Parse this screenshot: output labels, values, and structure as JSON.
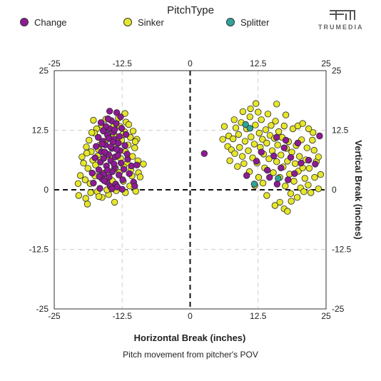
{
  "legend": {
    "title": "PitchType",
    "items": [
      {
        "label": "Change",
        "color": "#8E1A95"
      },
      {
        "label": "Sinker",
        "color": "#E6E62A"
      },
      {
        "label": "Splitter",
        "color": "#2FA39A"
      }
    ]
  },
  "logo": {
    "text": "TRUMEDIA"
  },
  "caption": "Pitch movement from pitcher's POV",
  "chart_data": {
    "type": "scatter",
    "xlabel": "Horizontal Break (inches)",
    "ylabel": "Vertical Break (inches)",
    "xlim": [
      -25,
      25
    ],
    "ylim": [
      -25,
      25
    ],
    "xticks": [
      -25,
      -12.5,
      0,
      12.5,
      25
    ],
    "yticks": [
      25,
      12.5,
      0,
      -12.5,
      -25
    ],
    "xtick_labels": [
      "-25",
      "-12.5",
      "0",
      "12.5",
      "25"
    ],
    "ytick_labels": [
      "25",
      "12.5",
      "0",
      "-12.5",
      "-25"
    ],
    "grid": true,
    "series": [
      {
        "name": "Change",
        "color": "#8E1A95",
        "points": [
          [
            -14.8,
            12.8
          ],
          [
            -13.5,
            16.2
          ],
          [
            -15.2,
            11.5
          ],
          [
            -14.0,
            10.6
          ],
          [
            -16.1,
            10.2
          ],
          [
            -13.2,
            9.8
          ],
          [
            -15.6,
            9.4
          ],
          [
            -14.4,
            8.7
          ],
          [
            -12.9,
            8.2
          ],
          [
            -16.3,
            8.0
          ],
          [
            -15.0,
            7.4
          ],
          [
            -13.8,
            6.9
          ],
          [
            -14.6,
            6.1
          ],
          [
            -16.5,
            5.8
          ],
          [
            -12.7,
            5.6
          ],
          [
            -15.4,
            5.0
          ],
          [
            -13.9,
            4.6
          ],
          [
            -16.8,
            4.2
          ],
          [
            -14.3,
            3.8
          ],
          [
            -15.9,
            3.3
          ],
          [
            -13.1,
            3.1
          ],
          [
            -14.9,
            2.7
          ],
          [
            -16.2,
            2.3
          ],
          [
            -12.4,
            2.1
          ],
          [
            -15.3,
            1.6
          ],
          [
            -13.7,
            1.2
          ],
          [
            -14.7,
            0.7
          ],
          [
            -16.6,
            0.3
          ],
          [
            -13.4,
            0.6
          ],
          [
            -15.8,
            1.9
          ],
          [
            -14.1,
            12.1
          ],
          [
            -15.5,
            13.3
          ],
          [
            -13.6,
            13.9
          ],
          [
            -16.0,
            12.4
          ],
          [
            -14.5,
            14.5
          ],
          [
            -12.6,
            12.9
          ],
          [
            -15.1,
            14.9
          ],
          [
            -13.0,
            11.2
          ],
          [
            -16.9,
            11.0
          ],
          [
            -14.2,
            10.0
          ],
          [
            -17.3,
            9.1
          ],
          [
            -15.7,
            7.9
          ],
          [
            -13.3,
            7.2
          ],
          [
            -11.5,
            6.4
          ],
          [
            -10.8,
            5.0
          ],
          [
            -9.8,
            5.2
          ],
          [
            -11.2,
            3.4
          ],
          [
            -10.4,
            1.6
          ],
          [
            -10.2,
            0.8
          ],
          [
            -12.0,
            9.3
          ],
          [
            -11.8,
            11.6
          ],
          [
            -17.5,
            6.7
          ],
          [
            -18.0,
            3.5
          ],
          [
            -16.4,
            14.1
          ],
          [
            -14.8,
            16.5
          ],
          [
            -12.8,
            15.3
          ],
          [
            -13.9,
            12.6
          ],
          [
            -15.0,
            10.8
          ],
          [
            -16.2,
            9.6
          ],
          [
            -14.6,
            9.0
          ],
          [
            -13.5,
            8.5
          ],
          [
            -15.9,
            6.6
          ],
          [
            -14.0,
            5.4
          ],
          [
            -12.2,
            4.3
          ],
          [
            -16.7,
            2.8
          ],
          [
            -17.8,
            1.4
          ],
          [
            -14.4,
            0.2
          ],
          [
            -12.5,
            0.1
          ],
          [
            -11.6,
            7.5
          ],
          [
            -15.2,
            4.1
          ],
          [
            16.0,
            1.2
          ],
          [
            18.5,
            6.8
          ],
          [
            19.2,
            3.4
          ],
          [
            20.4,
            5.6
          ],
          [
            17.3,
            8.8
          ],
          [
            15.4,
            7.1
          ],
          [
            21.8,
            6.2
          ],
          [
            14.2,
            4.1
          ],
          [
            13.1,
            7.9
          ],
          [
            16.7,
            4.6
          ],
          [
            19.8,
            9.8
          ],
          [
            12.2,
            6.0
          ],
          [
            10.4,
            3.0
          ],
          [
            15.9,
            11.0
          ],
          [
            18.0,
            2.1
          ],
          [
            17.6,
            10.4
          ],
          [
            23.8,
            11.3
          ],
          [
            23.0,
            5.4
          ],
          [
            2.6,
            7.6
          ],
          [
            14.6,
            2.6
          ]
        ]
      },
      {
        "name": "Sinker",
        "color": "#E6E62A",
        "points": [
          [
            -15.5,
            14.8
          ],
          [
            -13.2,
            15.0
          ],
          [
            -11.8,
            14.2
          ],
          [
            -17.2,
            12.8
          ],
          [
            -16.3,
            13.6
          ],
          [
            -12.1,
            12.2
          ],
          [
            -11.0,
            11.0
          ],
          [
            -10.5,
            12.3
          ],
          [
            -18.6,
            10.4
          ],
          [
            -17.6,
            11.9
          ],
          [
            -12.6,
            10.4
          ],
          [
            -11.4,
            9.4
          ],
          [
            -10.2,
            8.8
          ],
          [
            -9.8,
            10.6
          ],
          [
            -19.1,
            9.0
          ],
          [
            -18.2,
            8.0
          ],
          [
            -17.0,
            7.1
          ],
          [
            -11.9,
            8.0
          ],
          [
            -10.6,
            7.0
          ],
          [
            -9.6,
            6.1
          ],
          [
            -19.6,
            5.6
          ],
          [
            -18.8,
            4.5
          ],
          [
            -17.9,
            6.2
          ],
          [
            -11.6,
            5.6
          ],
          [
            -10.9,
            4.2
          ],
          [
            -9.5,
            3.6
          ],
          [
            -20.2,
            3.0
          ],
          [
            -19.3,
            2.1
          ],
          [
            -18.4,
            1.3
          ],
          [
            -12.3,
            1.8
          ],
          [
            -11.1,
            0.8
          ],
          [
            -10.0,
            -0.3
          ],
          [
            -20.5,
            -1.2
          ],
          [
            -19.2,
            -1.8
          ],
          [
            -18.3,
            -0.6
          ],
          [
            -17.1,
            -0.4
          ],
          [
            -16.2,
            -1.6
          ],
          [
            -15.0,
            -1.0
          ],
          [
            -13.9,
            -2.6
          ],
          [
            -16.8,
            -1.4
          ],
          [
            -18.9,
            -3.0
          ],
          [
            -20.6,
            1.3
          ],
          [
            -16.0,
            3.5
          ],
          [
            -13.0,
            3.6
          ],
          [
            -14.3,
            1.9
          ],
          [
            -12.8,
            6.6
          ],
          [
            -14.0,
            11.5
          ],
          [
            -15.9,
            12.3
          ],
          [
            -17.4,
            5.2
          ],
          [
            -13.6,
            -0.2
          ],
          [
            -19.9,
            6.9
          ],
          [
            -16.6,
            9.4
          ],
          [
            -12.9,
            13.3
          ],
          [
            -11.3,
            13.7
          ],
          [
            -17.8,
            14.6
          ],
          [
            -12.0,
            16.0
          ],
          [
            -10.1,
            10.1
          ],
          [
            -8.6,
            5.4
          ],
          [
            -9.2,
            2.7
          ],
          [
            -11.9,
            -0.6
          ],
          [
            -15.3,
            0.0
          ],
          [
            -17.5,
            2.9
          ],
          [
            -19.0,
            7.7
          ],
          [
            -14.8,
            6.9
          ],
          [
            -16.9,
            8.5
          ],
          [
            -18.1,
            12.0
          ],
          [
            -14.2,
            13.2
          ],
          [
            -12.4,
            11.6
          ],
          [
            -15.6,
            10.2
          ],
          [
            -13.4,
            9.7
          ],
          [
            -16.4,
            6.3
          ],
          [
            -12.2,
            4.8
          ],
          [
            -13.7,
            4.5
          ],
          [
            -15.2,
            2.5
          ],
          [
            -10.7,
            2.9
          ],
          [
            6.3,
            13.3
          ],
          [
            7.1,
            11.3
          ],
          [
            6.9,
            9.1
          ],
          [
            7.6,
            8.4
          ],
          [
            7.9,
            10.7
          ],
          [
            8.4,
            13.0
          ],
          [
            8.2,
            7.6
          ],
          [
            8.9,
            11.6
          ],
          [
            9.4,
            14.1
          ],
          [
            9.1,
            8.9
          ],
          [
            9.6,
            7.0
          ],
          [
            10.1,
            10.2
          ],
          [
            10.4,
            12.8
          ],
          [
            10.7,
            8.2
          ],
          [
            11.0,
            15.3
          ],
          [
            11.2,
            11.1
          ],
          [
            11.5,
            6.7
          ],
          [
            11.8,
            9.6
          ],
          [
            12.0,
            13.6
          ],
          [
            12.3,
            5.6
          ],
          [
            12.5,
            16.3
          ],
          [
            12.7,
            11.9
          ],
          [
            12.9,
            8.9
          ],
          [
            13.1,
            14.7
          ],
          [
            13.3,
            10.6
          ],
          [
            13.5,
            7.5
          ],
          [
            13.7,
            4.6
          ],
          [
            13.9,
            12.6
          ],
          [
            14.1,
            9.8
          ],
          [
            14.3,
            15.9
          ],
          [
            14.5,
            6.5
          ],
          [
            14.7,
            11.4
          ],
          [
            14.9,
            13.5
          ],
          [
            15.1,
            8.2
          ],
          [
            15.3,
            3.6
          ],
          [
            15.5,
            10.8
          ],
          [
            15.7,
            14.4
          ],
          [
            15.9,
            5.9
          ],
          [
            16.1,
            9.4
          ],
          [
            16.3,
            12.2
          ],
          [
            16.5,
            2.6
          ],
          [
            16.7,
            7.3
          ],
          [
            16.9,
            11.0
          ],
          [
            17.1,
            4.8
          ],
          [
            17.3,
            13.4
          ],
          [
            17.5,
            0.8
          ],
          [
            17.7,
            8.7
          ],
          [
            17.9,
            6.0
          ],
          [
            18.1,
            10.1
          ],
          [
            18.3,
            3.3
          ],
          [
            18.5,
            -0.8
          ],
          [
            18.7,
            7.9
          ],
          [
            18.9,
            12.8
          ],
          [
            19.1,
            1.8
          ],
          [
            19.3,
            5.5
          ],
          [
            19.5,
            9.3
          ],
          [
            19.7,
            -1.6
          ],
          [
            19.9,
            3.9
          ],
          [
            20.1,
            7.0
          ],
          [
            20.3,
            0.4
          ],
          [
            20.5,
            10.5
          ],
          [
            20.7,
            4.6
          ],
          [
            20.9,
            -0.4
          ],
          [
            21.1,
            2.4
          ],
          [
            21.3,
            6.3
          ],
          [
            21.5,
            8.8
          ],
          [
            21.7,
            1.0
          ],
          [
            21.9,
            4.5
          ],
          [
            22.2,
            -0.6
          ],
          [
            22.5,
            10.4
          ],
          [
            22.9,
            2.6
          ],
          [
            23.2,
            5.9
          ],
          [
            23.6,
            0.2
          ],
          [
            24.0,
            3.2
          ],
          [
            17.3,
            -4.0
          ],
          [
            17.9,
            -4.5
          ],
          [
            16.5,
            -2.6
          ],
          [
            15.6,
            -3.3
          ],
          [
            14.1,
            -1.2
          ],
          [
            18.6,
            -2.4
          ],
          [
            11.9,
            0.9
          ],
          [
            12.6,
            2.6
          ],
          [
            13.4,
            1.4
          ],
          [
            10.9,
            3.8
          ],
          [
            9.9,
            5.5
          ],
          [
            8.7,
            4.9
          ],
          [
            7.3,
            6.1
          ],
          [
            6.0,
            10.6
          ],
          [
            22.6,
            12.0
          ],
          [
            21.8,
            12.8
          ],
          [
            12.1,
            18.1
          ],
          [
            15.9,
            18.0
          ],
          [
            11.1,
            17.0
          ],
          [
            9.7,
            16.4
          ],
          [
            8.1,
            14.7
          ],
          [
            17.6,
            15.7
          ],
          [
            19.8,
            13.4
          ],
          [
            20.7,
            13.9
          ],
          [
            22.8,
            8.3
          ],
          [
            23.6,
            6.9
          ]
        ]
      },
      {
        "name": "Splitter",
        "color": "#2FA39A",
        "points": [
          [
            10.2,
            13.7
          ],
          [
            11.0,
            12.9
          ],
          [
            11.8,
            1.2
          ],
          [
            16.2,
            2.4
          ]
        ]
      }
    ]
  }
}
